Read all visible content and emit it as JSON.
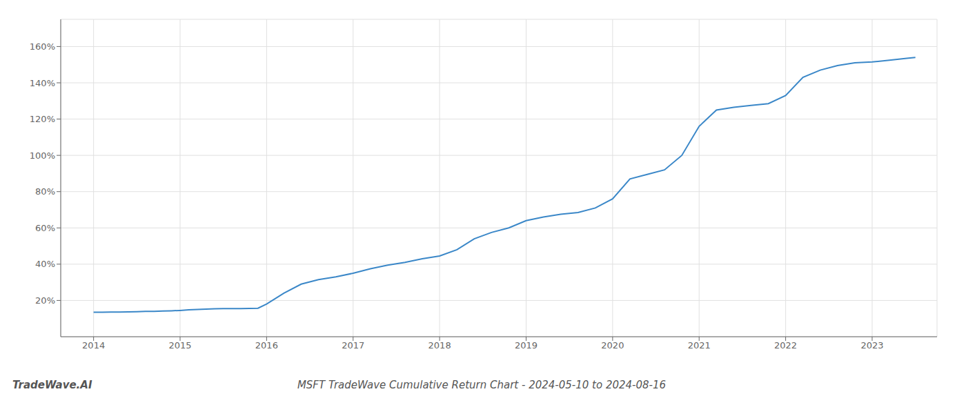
{
  "chart_data": {
    "type": "line",
    "title": "MSFT TradeWave Cumulative Return Chart - 2024-05-10 to 2024-08-16",
    "annotations": [
      "TradeWave.AI"
    ],
    "x": [
      2014.0,
      2014.1,
      2014.2,
      2014.3,
      2014.4,
      2014.5,
      2014.6,
      2014.7,
      2014.8,
      2014.9,
      2015.0,
      2015.1,
      2015.2,
      2015.3,
      2015.4,
      2015.5,
      2015.6,
      2015.7,
      2015.8,
      2015.9,
      2016.0,
      2016.2,
      2016.4,
      2016.6,
      2016.8,
      2017.0,
      2017.2,
      2017.4,
      2017.6,
      2017.8,
      2018.0,
      2018.2,
      2018.4,
      2018.6,
      2018.8,
      2019.0,
      2019.2,
      2019.4,
      2019.6,
      2019.8,
      2020.0,
      2020.2,
      2020.4,
      2020.6,
      2020.8,
      2021.0,
      2021.2,
      2021.4,
      2021.6,
      2021.8,
      2022.0,
      2022.2,
      2022.4,
      2022.6,
      2022.8,
      2023.0,
      2023.2,
      2023.4,
      2023.5
    ],
    "values": [
      13.5,
      13.5,
      13.6,
      13.6,
      13.7,
      13.8,
      14.0,
      14.0,
      14.2,
      14.3,
      14.5,
      14.8,
      15.0,
      15.2,
      15.4,
      15.5,
      15.5,
      15.5,
      15.6,
      15.7,
      18.0,
      24.0,
      29.0,
      31.5,
      33.0,
      35.0,
      37.5,
      39.5,
      41.0,
      43.0,
      44.5,
      48.0,
      54.0,
      57.5,
      60.0,
      64.0,
      66.0,
      67.5,
      68.5,
      71.0,
      76.0,
      87.0,
      89.5,
      92.0,
      100.0,
      116.0,
      125.0,
      126.5,
      127.5,
      128.5,
      133.0,
      143.0,
      147.0,
      149.5,
      151.0,
      151.5,
      152.5,
      153.5,
      154.0
    ],
    "color": "#3a87c8",
    "xlim": [
      2013.62,
      2023.75
    ],
    "ylim": [
      0,
      175
    ],
    "xticks": [
      2014,
      2015,
      2016,
      2017,
      2018,
      2019,
      2020,
      2021,
      2022,
      2023
    ],
    "yticks": [
      {
        "value": 20,
        "label": "20%"
      },
      {
        "value": 40,
        "label": "40%"
      },
      {
        "value": 60,
        "label": "60%"
      },
      {
        "value": 80,
        "label": "80%"
      },
      {
        "value": 100,
        "label": "100%"
      },
      {
        "value": 120,
        "label": "120%"
      },
      {
        "value": 140,
        "label": "140%"
      },
      {
        "value": 160,
        "label": "160%"
      }
    ],
    "grid": true
  }
}
